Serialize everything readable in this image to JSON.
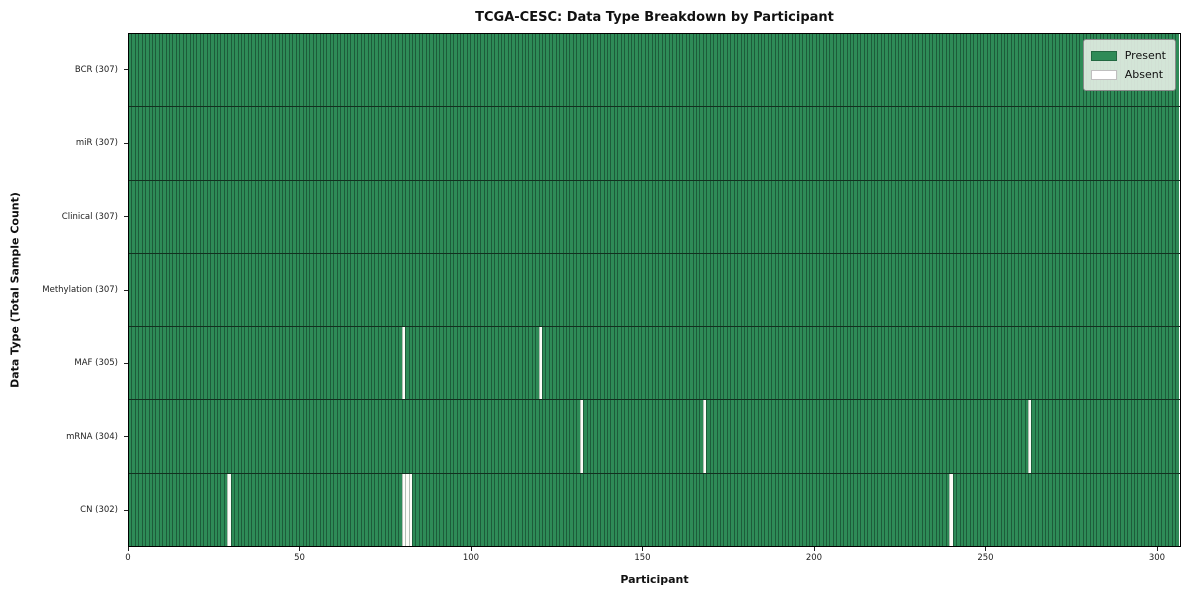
{
  "title": "TCGA-CESC: Data Type Breakdown by Participant",
  "chart_data": {
    "type": "heatmap",
    "title": "TCGA-CESC: Data Type Breakdown by Participant",
    "xlabel": "Participant",
    "ylabel": "Data Type (Total Sample Count)",
    "n_participants": 307,
    "x_ticks": [
      0,
      50,
      100,
      150,
      200,
      250,
      300
    ],
    "xlim": [
      0,
      307
    ],
    "grid": false,
    "legend_position": "upper right",
    "legend": [
      {
        "label": "Present",
        "color": "#2e8b57"
      },
      {
        "label": "Absent",
        "color": "#ffffff"
      }
    ],
    "colors": {
      "present": "#2e8b57",
      "absent": "#fdfdf8",
      "cell_edge": "#1d5c3a",
      "row_divider": "#12301f"
    },
    "rows": [
      {
        "name": "bcr",
        "label": "BCR (307)",
        "data_type": "BCR",
        "total": 307,
        "absent_participants": []
      },
      {
        "name": "mir",
        "label": "miR (307)",
        "data_type": "miR",
        "total": 307,
        "absent_participants": []
      },
      {
        "name": "clinical",
        "label": "Clinical (307)",
        "data_type": "Clinical",
        "total": 307,
        "absent_participants": []
      },
      {
        "name": "methylation",
        "label": "Methylation (307)",
        "data_type": "Methylation",
        "total": 307,
        "absent_participants": []
      },
      {
        "name": "maf",
        "label": "MAF (305)",
        "data_type": "MAF",
        "total": 305,
        "absent_participants": [
          80,
          120
        ]
      },
      {
        "name": "mrna",
        "label": "mRNA (304)",
        "data_type": "mRNA",
        "total": 304,
        "absent_participants": [
          132,
          168,
          263
        ]
      },
      {
        "name": "cn",
        "label": "CN (302)",
        "data_type": "CN",
        "total": 302,
        "absent_participants": [
          29,
          80,
          81,
          82,
          240
        ]
      }
    ]
  }
}
